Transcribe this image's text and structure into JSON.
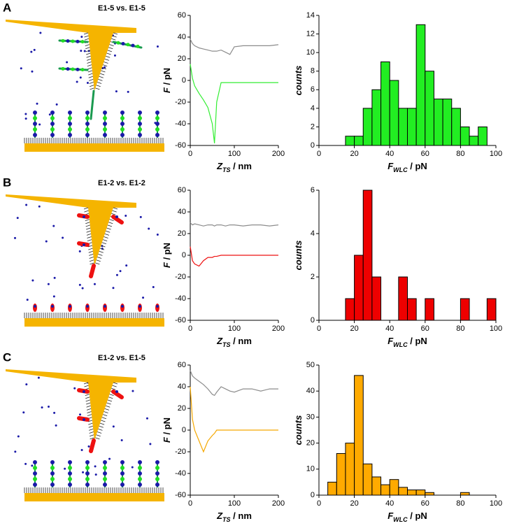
{
  "panel_labels": [
    "A",
    "B",
    "C"
  ],
  "schematic_titles": [
    "E1-5 vs. E1-5",
    "E1-2 vs. E1-2",
    "E1-2 vs. E1-5"
  ],
  "chart_data": [
    {
      "type": "line",
      "ylabel": [
        "F",
        " / pN"
      ],
      "xlabel": [
        "Z",
        "TS",
        " / nm"
      ],
      "x": [
        0,
        5,
        10,
        20,
        30,
        40,
        50,
        55,
        60,
        70,
        80,
        90,
        100,
        120,
        140,
        160,
        180,
        200
      ],
      "series": [
        {
          "color": "#8c8c8c",
          "values": [
            38,
            34,
            32,
            30,
            29,
            28,
            27,
            27,
            27,
            28,
            26,
            24,
            31,
            32,
            32,
            32,
            32,
            33
          ]
        },
        {
          "color": "#33ee33",
          "values": [
            15,
            2,
            -5,
            -12,
            -18,
            -25,
            -40,
            -58,
            -20,
            -2,
            -2,
            -2,
            -2,
            -2,
            -2,
            -2,
            -2,
            -2
          ]
        }
      ],
      "xlim": [
        0,
        200
      ],
      "xticks": [
        0,
        100,
        200
      ],
      "ylim": [
        -60,
        60
      ],
      "yticks": [
        -60,
        -40,
        -20,
        0,
        20,
        40,
        60
      ]
    },
    {
      "type": "histogram",
      "ylabel": [
        "counts"
      ],
      "xlabel": [
        "F",
        "WLC",
        " / pN"
      ],
      "color": "#22ee22",
      "bins": [
        15,
        20,
        25,
        30,
        35,
        40,
        45,
        50,
        55,
        60,
        65,
        70,
        75,
        80,
        85,
        90,
        95
      ],
      "values": [
        1,
        1,
        4,
        6,
        9,
        7,
        4,
        4,
        13,
        8,
        5,
        5,
        4,
        2,
        1,
        2
      ],
      "xlim": [
        0,
        100
      ],
      "xticks": [
        0,
        20,
        40,
        60,
        80,
        100
      ],
      "ylim": [
        0,
        14
      ],
      "yticks": [
        0,
        2,
        4,
        6,
        8,
        10,
        12,
        14
      ]
    },
    {
      "type": "line",
      "ylabel": [
        "F",
        " / pN"
      ],
      "xlabel": [
        "Z",
        "TS",
        " / nm"
      ],
      "x": [
        0,
        5,
        10,
        20,
        30,
        40,
        50,
        55,
        60,
        70,
        80,
        90,
        100,
        120,
        140,
        160,
        180,
        200
      ],
      "series": [
        {
          "color": "#8c8c8c",
          "values": [
            30,
            28,
            29,
            28,
            27,
            28,
            28,
            27,
            28,
            28,
            27,
            28,
            28,
            27,
            28,
            28,
            27,
            28
          ]
        },
        {
          "color": "#ee1111",
          "values": [
            8,
            -5,
            -8,
            -10,
            -5,
            -2,
            -2,
            -1,
            -1,
            0,
            0,
            0,
            0,
            0,
            0,
            0,
            0,
            0
          ]
        }
      ],
      "xlim": [
        0,
        200
      ],
      "xticks": [
        0,
        100,
        200
      ],
      "ylim": [
        -60,
        60
      ],
      "yticks": [
        -60,
        -40,
        -20,
        0,
        20,
        40,
        60
      ]
    },
    {
      "type": "histogram",
      "ylabel": [
        "counts"
      ],
      "xlabel": [
        "F",
        "WLC",
        " / pN"
      ],
      "color": "#ee0000",
      "bins": [
        15,
        20,
        25,
        30,
        35,
        40,
        45,
        50,
        55,
        60,
        65,
        70,
        75,
        80,
        85,
        90,
        95,
        100
      ],
      "values": [
        1,
        3,
        6,
        2,
        0,
        0,
        2,
        1,
        0,
        1,
        0,
        0,
        0,
        1,
        0,
        0,
        1
      ],
      "xlim": [
        0,
        100
      ],
      "xticks": [
        0,
        20,
        40,
        60,
        80,
        100
      ],
      "ylim": [
        0,
        6
      ],
      "yticks": [
        0,
        2,
        4,
        6
      ]
    },
    {
      "type": "line",
      "ylabel": [
        "F",
        " / pN"
      ],
      "xlabel": [
        "Z",
        "TS",
        " / nm"
      ],
      "x": [
        0,
        5,
        10,
        20,
        30,
        40,
        50,
        55,
        60,
        70,
        80,
        90,
        100,
        120,
        140,
        160,
        180,
        200
      ],
      "series": [
        {
          "color": "#8c8c8c",
          "values": [
            55,
            50,
            48,
            45,
            42,
            38,
            33,
            32,
            35,
            40,
            38,
            36,
            35,
            38,
            38,
            36,
            38,
            38
          ]
        },
        {
          "color": "#f5a800",
          "values": [
            40,
            10,
            0,
            -10,
            -20,
            -10,
            -5,
            -3,
            0,
            0,
            0,
            0,
            0,
            0,
            0,
            0,
            0,
            0
          ]
        }
      ],
      "xlim": [
        0,
        200
      ],
      "xticks": [
        0,
        100,
        200
      ],
      "ylim": [
        -60,
        60
      ],
      "yticks": [
        -60,
        -40,
        -20,
        0,
        20,
        40,
        60
      ]
    },
    {
      "type": "histogram",
      "ylabel": [
        "counts"
      ],
      "xlabel": [
        "F",
        "WLC",
        " / pN"
      ],
      "color": "#ffaa00",
      "bins": [
        5,
        10,
        15,
        20,
        25,
        30,
        35,
        40,
        45,
        50,
        55,
        60,
        65,
        70,
        75,
        80,
        85
      ],
      "values": [
        5,
        16,
        20,
        46,
        12,
        7,
        4,
        6,
        3,
        2,
        2,
        1,
        0,
        0,
        0,
        1
      ],
      "xlim": [
        0,
        100
      ],
      "xticks": [
        0,
        20,
        40,
        60,
        80,
        100
      ],
      "ylim": [
        0,
        50
      ],
      "yticks": [
        0,
        10,
        20,
        30,
        40,
        50
      ]
    }
  ]
}
